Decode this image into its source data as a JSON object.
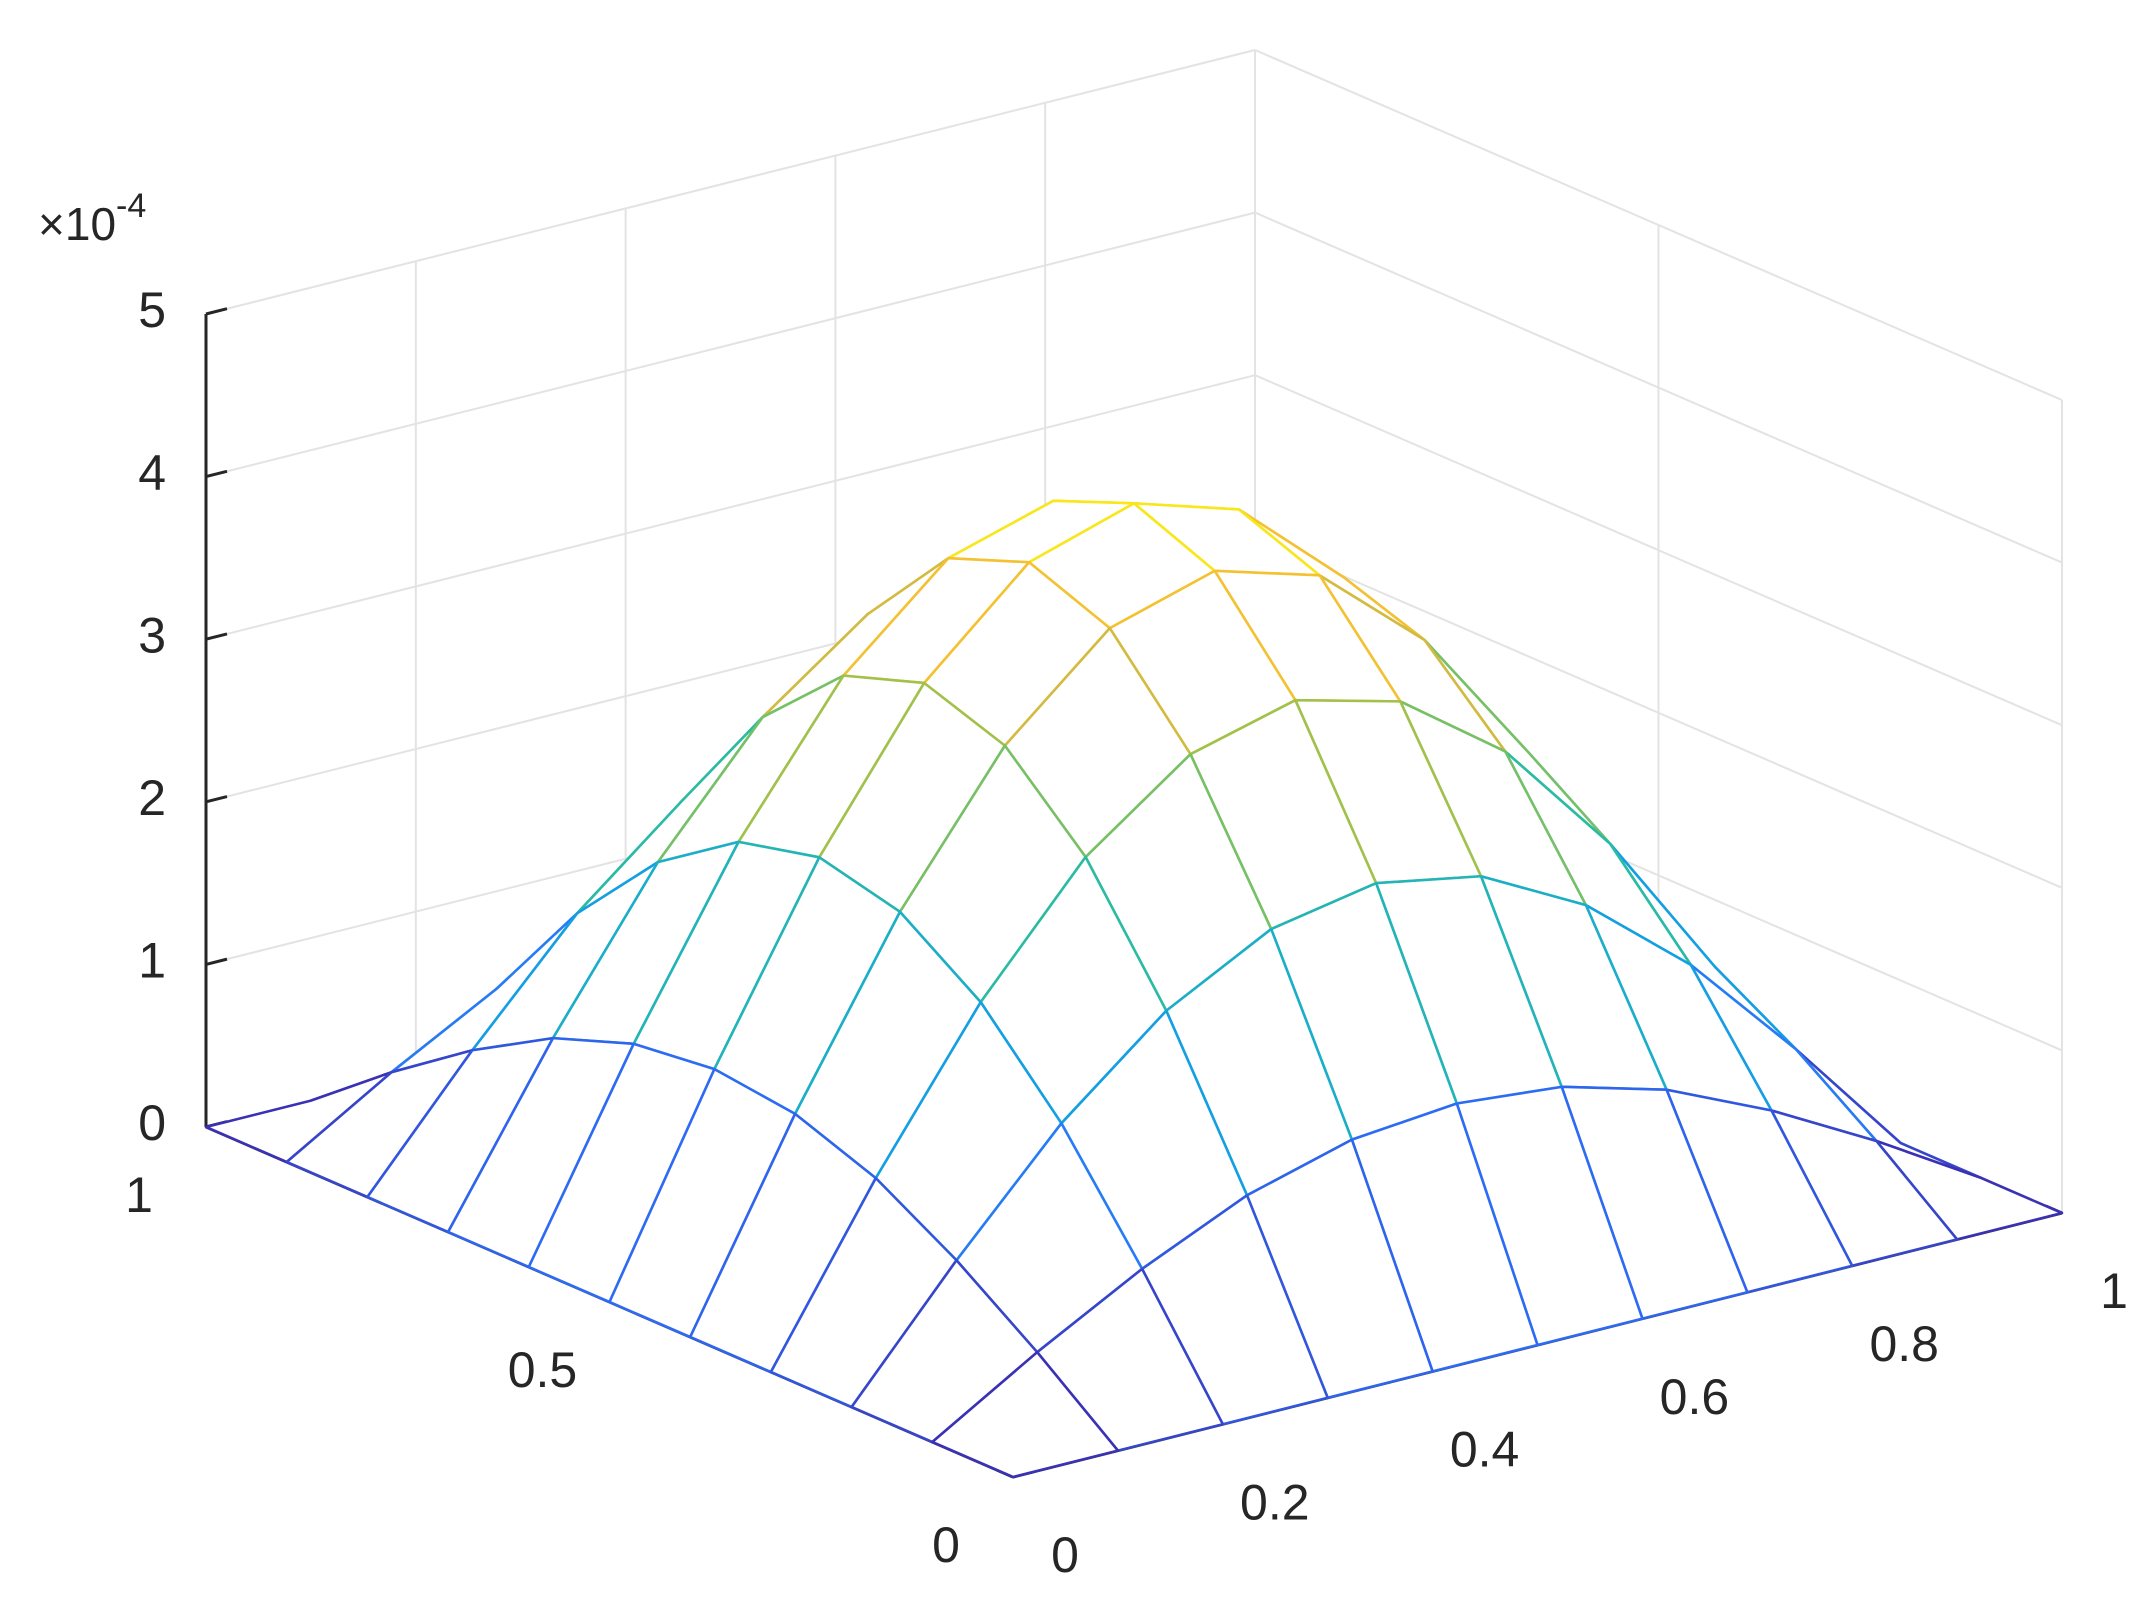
{
  "chart_data": {
    "type": "mesh",
    "z_multiplier": {
      "base": "×10",
      "exponent": "-4"
    },
    "x": [
      0,
      0.1,
      0.2,
      0.3,
      0.4,
      0.5,
      0.6,
      0.7,
      0.8,
      0.9,
      1
    ],
    "y": [
      0,
      0.1,
      0.2,
      0.3,
      0.4,
      0.5,
      0.6,
      0.7,
      0.8,
      0.9,
      1
    ],
    "z": [
      [
        0,
        0,
        0,
        0,
        0,
        0,
        0,
        0,
        0,
        0,
        0
      ],
      [
        0,
        0.39,
        0.74,
        1.03,
        1.21,
        1.27,
        1.21,
        1.03,
        0.74,
        0.39,
        0
      ],
      [
        0,
        0.74,
        1.42,
        1.95,
        2.29,
        2.41,
        2.29,
        1.95,
        1.42,
        0.74,
        0
      ],
      [
        0,
        1.03,
        1.95,
        2.68,
        3.15,
        3.32,
        3.15,
        2.68,
        1.95,
        1.03,
        0
      ],
      [
        0,
        1.21,
        2.29,
        3.15,
        3.71,
        3.9,
        3.71,
        3.15,
        2.29,
        1.21,
        0
      ],
      [
        0,
        1.27,
        2.41,
        3.32,
        3.9,
        4.1,
        3.9,
        3.32,
        2.41,
        1.27,
        0
      ],
      [
        0,
        1.21,
        2.29,
        3.15,
        3.71,
        3.9,
        3.71,
        3.15,
        2.29,
        1.21,
        0
      ],
      [
        0,
        1.03,
        1.95,
        2.68,
        3.15,
        3.32,
        3.15,
        2.68,
        1.95,
        1.03,
        0
      ],
      [
        0,
        0.74,
        1.42,
        1.95,
        2.29,
        2.41,
        2.29,
        1.95,
        1.42,
        0.74,
        0
      ],
      [
        0,
        0.39,
        0.74,
        1.03,
        1.21,
        1.27,
        1.21,
        1.03,
        0.74,
        0.39,
        0
      ],
      [
        0,
        0,
        0,
        0,
        0,
        0,
        0,
        0,
        0,
        0,
        0
      ]
    ],
    "xlim": [
      0,
      1
    ],
    "xticks": [
      0,
      0.2,
      0.4,
      0.6,
      0.8,
      1
    ],
    "ylim": [
      0,
      1
    ],
    "yticks": [
      0,
      0.5,
      1
    ],
    "zlim": [
      0,
      5
    ],
    "zticks": [
      0,
      1,
      2,
      3,
      4,
      5
    ],
    "grid": true,
    "colormap": [
      "#3e26a8",
      "#2c72fc",
      "#12a5e0",
      "#2bbd9f",
      "#99c24d",
      "#f3b73a",
      "#f9fb0e"
    ]
  }
}
